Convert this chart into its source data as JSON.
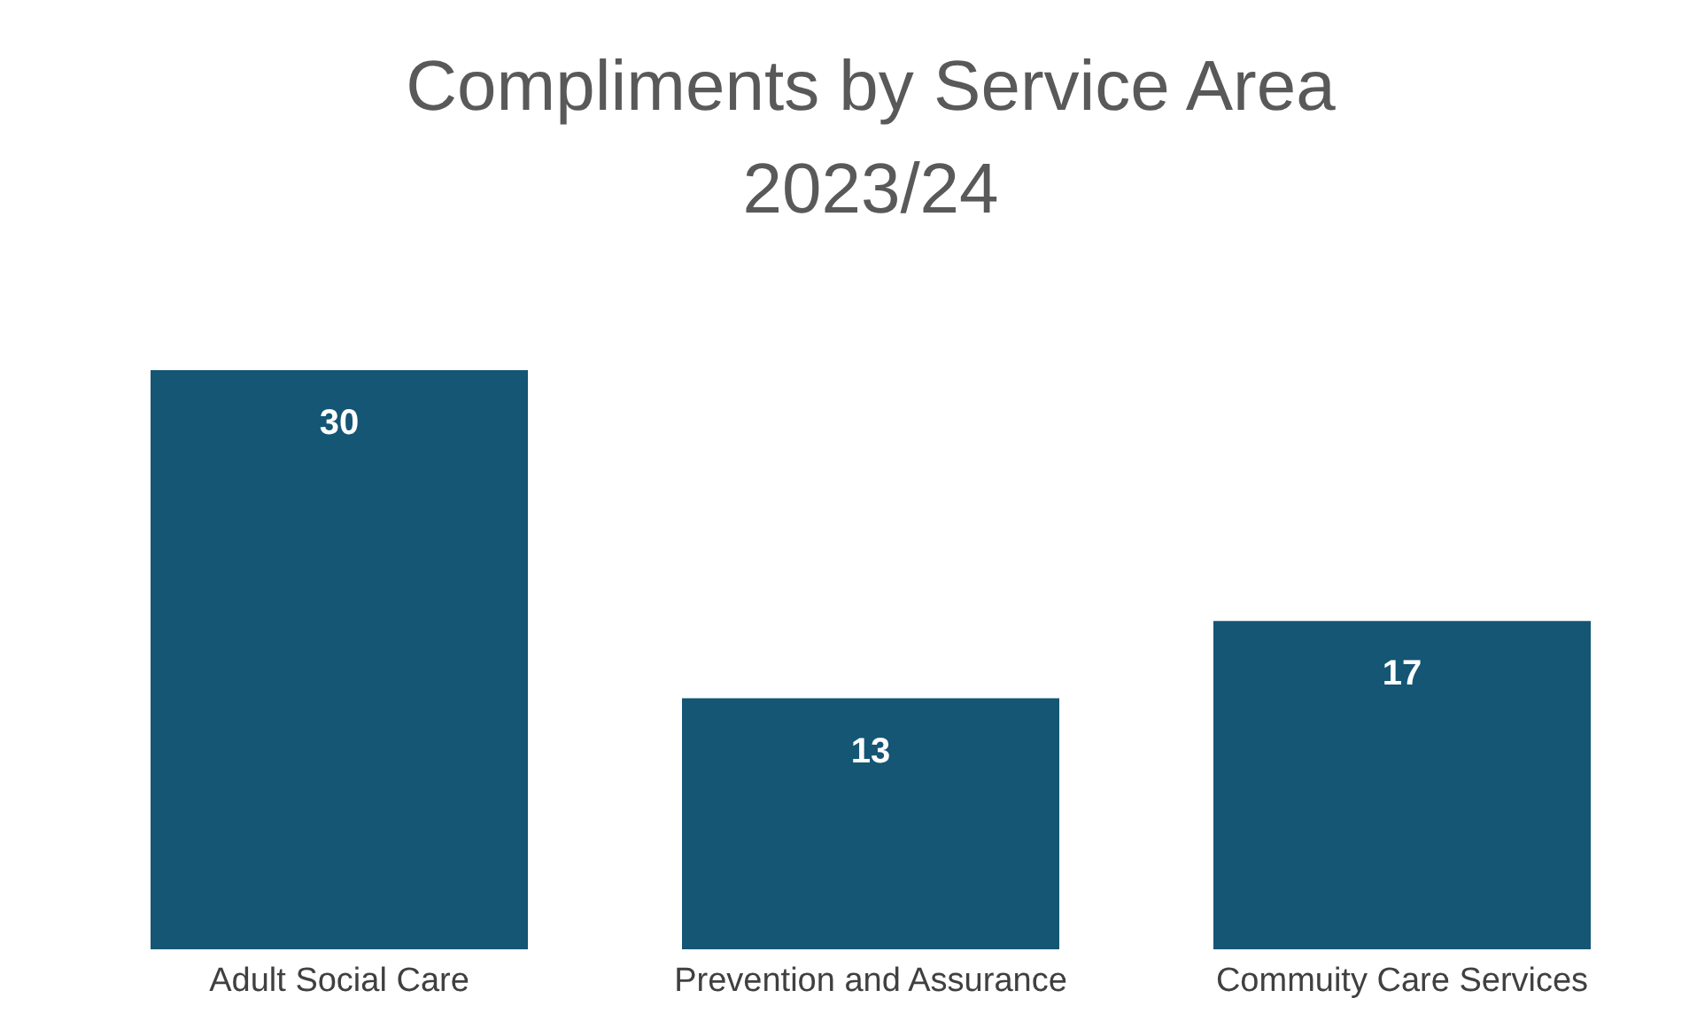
{
  "chart_data": {
    "type": "bar",
    "title": "Compliments by Service Area\n2023/24",
    "categories": [
      "Adult Social Care",
      "Prevention and Assurance",
      "Commuity Care Services"
    ],
    "values": [
      30,
      13,
      17
    ],
    "color": "#145674",
    "data_labels": true
  }
}
